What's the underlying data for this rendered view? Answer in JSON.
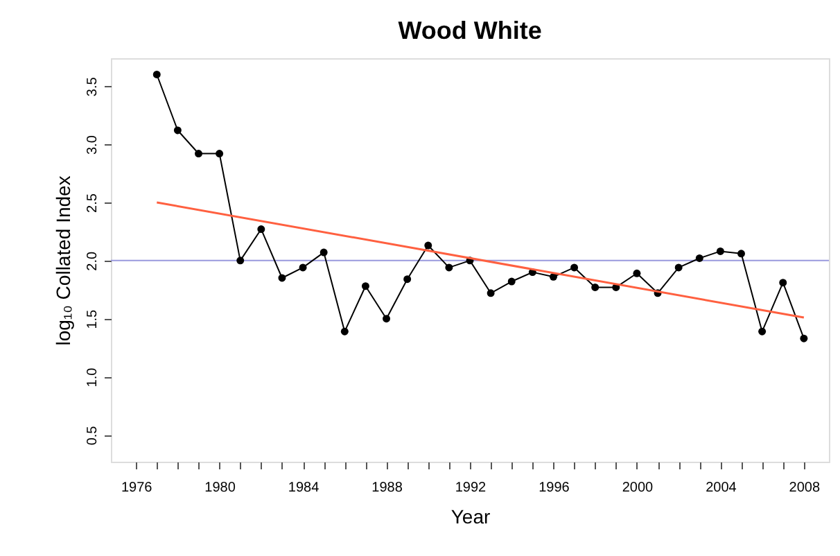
{
  "chart_data": {
    "type": "line",
    "title": "Wood White",
    "xlabel": "Year",
    "ylabel": "log₁₀ Collated Index",
    "x": [
      1977,
      1978,
      1979,
      1980,
      1981,
      1982,
      1983,
      1984,
      1985,
      1986,
      1987,
      1988,
      1989,
      1990,
      1991,
      1992,
      1993,
      1994,
      1995,
      1996,
      1997,
      1998,
      1999,
      2000,
      2001,
      2002,
      2003,
      2004,
      2005,
      2006,
      2007,
      2008
    ],
    "series": [
      {
        "color": "#000000",
        "marker": "circle",
        "values": [
          3.6,
          3.12,
          2.92,
          2.92,
          2.0,
          2.27,
          1.85,
          1.94,
          2.07,
          1.39,
          1.78,
          1.5,
          1.84,
          2.13,
          1.94,
          2.0,
          1.72,
          1.82,
          1.9,
          1.86,
          1.94,
          1.77,
          1.77,
          1.89,
          1.72,
          1.94,
          2.02,
          2.08,
          2.06,
          1.39,
          1.81,
          1.33
        ]
      },
      {
        "type": "line",
        "color": "#ff6040",
        "marker": "none",
        "x": [
          1977,
          2008
        ],
        "values": [
          2.5,
          1.51
        ]
      }
    ],
    "ref_lines": [
      {
        "axis": "y",
        "value": 2.0,
        "color": "#9999dd"
      }
    ],
    "xlim": [
      1974.8,
      2009.2
    ],
    "ylim": [
      0.27,
      3.74
    ],
    "xticks": [
      1976,
      {
        "value": 1977,
        "label": null
      },
      {
        "value": 1978,
        "label": null
      },
      {
        "value": 1979,
        "label": null
      },
      1980,
      {
        "value": 1981,
        "label": null
      },
      {
        "value": 1982,
        "label": null
      },
      {
        "value": 1983,
        "label": null
      },
      1984,
      {
        "value": 1985,
        "label": null
      },
      {
        "value": 1986,
        "label": null
      },
      {
        "value": 1987,
        "label": null
      },
      1988,
      {
        "value": 1989,
        "label": null
      },
      {
        "value": 1990,
        "label": null
      },
      {
        "value": 1991,
        "label": null
      },
      1992,
      {
        "value": 1993,
        "label": null
      },
      {
        "value": 1994,
        "label": null
      },
      {
        "value": 1995,
        "label": null
      },
      1996,
      {
        "value": 1997,
        "label": null
      },
      {
        "value": 1998,
        "label": null
      },
      {
        "value": 1999,
        "label": null
      },
      2000,
      {
        "value": 2001,
        "label": null
      },
      {
        "value": 2002,
        "label": null
      },
      {
        "value": 2003,
        "label": null
      },
      2004,
      {
        "value": 2005,
        "label": null
      },
      {
        "value": 2006,
        "label": null
      },
      {
        "value": 2007,
        "label": null
      },
      2008
    ],
    "yticks": [
      0.5,
      {
        "value": 1,
        "label": "1.0"
      },
      1.5,
      {
        "value": 2,
        "label": "2.0"
      },
      2.5,
      {
        "value": 3,
        "label": "3.0"
      },
      3.5
    ],
    "grid": false,
    "line_style": "solid"
  }
}
